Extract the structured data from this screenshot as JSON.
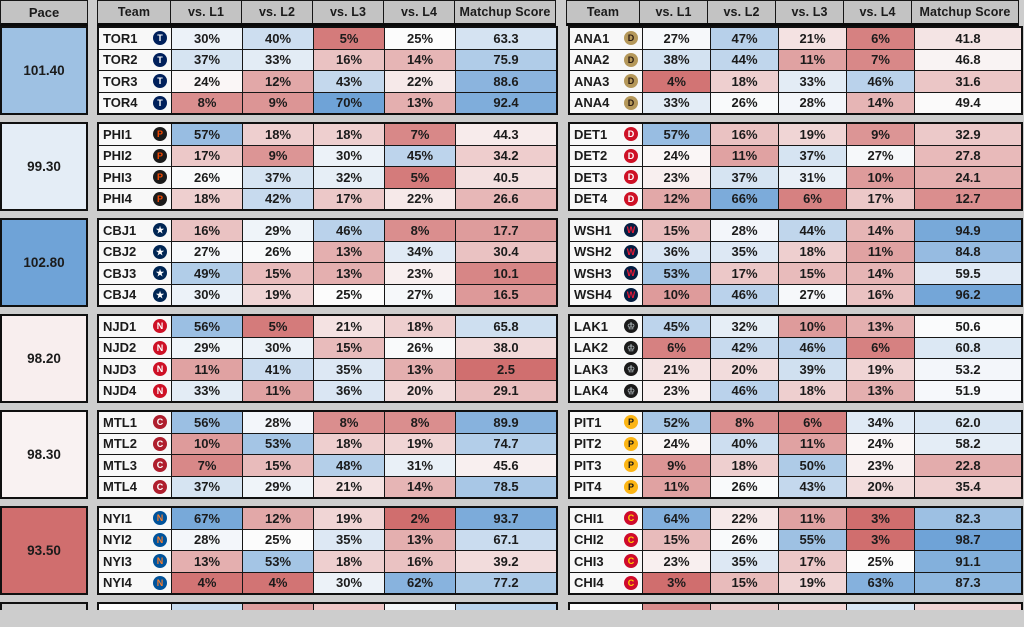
{
  "chart_data": {
    "type": "heatmap",
    "pace_label": "Pace",
    "columns": [
      "Team",
      "vs. L1",
      "vs. L2",
      "vs. L3",
      "vs. L4",
      "Matchup Score"
    ],
    "color_scale": {
      "white": "#fcfcfc",
      "blue": "#6fa3d7",
      "red": "#d06e6e",
      "pct_mid": 25,
      "pct_blue_span": 45,
      "pct_red_span": 22,
      "score_mid": 50,
      "score_span": 48,
      "pace_mid": 98.6,
      "pace_span": 4.2
    },
    "left_groups": [
      {
        "pace": 101.4,
        "teams": [
          {
            "team": "TOR1",
            "logo": "TOR",
            "vs": [
              30,
              40,
              5,
              25
            ],
            "score": 63.3
          },
          {
            "team": "TOR2",
            "logo": "TOR",
            "vs": [
              37,
              33,
              16,
              14
            ],
            "score": 75.9
          },
          {
            "team": "TOR3",
            "logo": "TOR",
            "vs": [
              24,
              12,
              43,
              22
            ],
            "score": 88.6
          },
          {
            "team": "TOR4",
            "logo": "TOR",
            "vs": [
              8,
              9,
              70,
              13
            ],
            "score": 92.4
          }
        ]
      },
      {
        "pace": 99.3,
        "teams": [
          {
            "team": "PHI1",
            "logo": "PHI",
            "vs": [
              57,
              18,
              18,
              7
            ],
            "score": 44.3
          },
          {
            "team": "PHI2",
            "logo": "PHI",
            "vs": [
              17,
              9,
              30,
              45
            ],
            "score": 34.2
          },
          {
            "team": "PHI3",
            "logo": "PHI",
            "vs": [
              26,
              37,
              32,
              5
            ],
            "score": 40.5
          },
          {
            "team": "PHI4",
            "logo": "PHI",
            "vs": [
              18,
              42,
              17,
              22
            ],
            "score": 26.6
          }
        ]
      },
      {
        "pace": 102.8,
        "teams": [
          {
            "team": "CBJ1",
            "logo": "CBJ",
            "vs": [
              16,
              29,
              46,
              8
            ],
            "score": 17.7
          },
          {
            "team": "CBJ2",
            "logo": "CBJ",
            "vs": [
              27,
              26,
              13,
              34
            ],
            "score": 30.4
          },
          {
            "team": "CBJ3",
            "logo": "CBJ",
            "vs": [
              49,
              15,
              13,
              23
            ],
            "score": 10.1
          },
          {
            "team": "CBJ4",
            "logo": "CBJ",
            "vs": [
              30,
              19,
              25,
              27
            ],
            "score": 16.5
          }
        ]
      },
      {
        "pace": 98.2,
        "teams": [
          {
            "team": "NJD1",
            "logo": "NJD",
            "vs": [
              56,
              5,
              21,
              18
            ],
            "score": 65.8
          },
          {
            "team": "NJD2",
            "logo": "NJD",
            "vs": [
              29,
              30,
              15,
              26
            ],
            "score": 38.0
          },
          {
            "team": "NJD3",
            "logo": "NJD",
            "vs": [
              11,
              41,
              35,
              13
            ],
            "score": 2.5
          },
          {
            "team": "NJD4",
            "logo": "NJD",
            "vs": [
              33,
              11,
              36,
              20
            ],
            "score": 29.1
          }
        ]
      },
      {
        "pace": 98.3,
        "teams": [
          {
            "team": "MTL1",
            "logo": "MTL",
            "vs": [
              56,
              28,
              8,
              8
            ],
            "score": 89.9
          },
          {
            "team": "MTL2",
            "logo": "MTL",
            "vs": [
              10,
              53,
              18,
              19
            ],
            "score": 74.7
          },
          {
            "team": "MTL3",
            "logo": "MTL",
            "vs": [
              7,
              15,
              48,
              31
            ],
            "score": 45.6
          },
          {
            "team": "MTL4",
            "logo": "MTL",
            "vs": [
              37,
              29,
              21,
              14
            ],
            "score": 78.5
          }
        ]
      },
      {
        "pace": 93.5,
        "teams": [
          {
            "team": "NYI1",
            "logo": "NYI",
            "vs": [
              67,
              12,
              19,
              2
            ],
            "score": 93.7
          },
          {
            "team": "NYI2",
            "logo": "NYI",
            "vs": [
              28,
              25,
              35,
              13
            ],
            "score": 67.1
          },
          {
            "team": "NYI3",
            "logo": "NYI",
            "vs": [
              13,
              53,
              18,
              16
            ],
            "score": 39.2
          },
          {
            "team": "NYI4",
            "logo": "NYI",
            "vs": [
              4,
              4,
              30,
              62
            ],
            "score": 77.2
          }
        ]
      }
    ],
    "right_groups": [
      {
        "teams": [
          {
            "team": "ANA1",
            "logo": "ANA",
            "vs": [
              27,
              47,
              21,
              6
            ],
            "score": 41.8
          },
          {
            "team": "ANA2",
            "logo": "ANA",
            "vs": [
              38,
              44,
              11,
              7
            ],
            "score": 46.8
          },
          {
            "team": "ANA3",
            "logo": "ANA",
            "vs": [
              4,
              18,
              33,
              46
            ],
            "score": 31.6
          },
          {
            "team": "ANA4",
            "logo": "ANA",
            "vs": [
              33,
              26,
              28,
              14
            ],
            "score": 49.4
          }
        ]
      },
      {
        "teams": [
          {
            "team": "DET1",
            "logo": "DET",
            "vs": [
              57,
              16,
              19,
              9
            ],
            "score": 32.9
          },
          {
            "team": "DET2",
            "logo": "DET",
            "vs": [
              24,
              11,
              37,
              27
            ],
            "score": 27.8
          },
          {
            "team": "DET3",
            "logo": "DET",
            "vs": [
              23,
              37,
              31,
              10
            ],
            "score": 24.1
          },
          {
            "team": "DET4",
            "logo": "DET",
            "vs": [
              12,
              66,
              6,
              17
            ],
            "score": 12.7
          }
        ]
      },
      {
        "teams": [
          {
            "team": "WSH1",
            "logo": "WSH",
            "vs": [
              15,
              28,
              44,
              14
            ],
            "score": 94.9
          },
          {
            "team": "WSH2",
            "logo": "WSH",
            "vs": [
              36,
              35,
              18,
              11
            ],
            "score": 84.8
          },
          {
            "team": "WSH3",
            "logo": "WSH",
            "vs": [
              53,
              17,
              15,
              14
            ],
            "score": 59.5
          },
          {
            "team": "WSH4",
            "logo": "WSH",
            "vs": [
              10,
              46,
              27,
              16
            ],
            "score": 96.2
          }
        ]
      },
      {
        "teams": [
          {
            "team": "LAK1",
            "logo": "LAK",
            "vs": [
              45,
              32,
              10,
              13
            ],
            "score": 50.6
          },
          {
            "team": "LAK2",
            "logo": "LAK",
            "vs": [
              6,
              42,
              46,
              6
            ],
            "score": 60.8
          },
          {
            "team": "LAK3",
            "logo": "LAK",
            "vs": [
              21,
              20,
              39,
              19
            ],
            "score": 53.2
          },
          {
            "team": "LAK4",
            "logo": "LAK",
            "vs": [
              23,
              46,
              18,
              13
            ],
            "score": 51.9
          }
        ]
      },
      {
        "teams": [
          {
            "team": "PIT1",
            "logo": "PIT",
            "vs": [
              52,
              8,
              6,
              34
            ],
            "score": 62.0
          },
          {
            "team": "PIT2",
            "logo": "PIT",
            "vs": [
              24,
              40,
              11,
              24
            ],
            "score": 58.2
          },
          {
            "team": "PIT3",
            "logo": "PIT",
            "vs": [
              9,
              18,
              50,
              23
            ],
            "score": 22.8
          },
          {
            "team": "PIT4",
            "logo": "PIT",
            "vs": [
              11,
              26,
              43,
              20
            ],
            "score": 35.4
          }
        ]
      },
      {
        "teams": [
          {
            "team": "CHI1",
            "logo": "CHI",
            "vs": [
              64,
              22,
              11,
              3
            ],
            "score": 82.3
          },
          {
            "team": "CHI2",
            "logo": "CHI",
            "vs": [
              15,
              26,
              55,
              3
            ],
            "score": 98.7
          },
          {
            "team": "CHI3",
            "logo": "CHI",
            "vs": [
              23,
              35,
              17,
              25
            ],
            "score": 91.1
          },
          {
            "team": "CHI4",
            "logo": "CHI",
            "vs": [
              3,
              15,
              19,
              63
            ],
            "score": 87.3
          }
        ]
      }
    ],
    "partial_bottom_row": {
      "left": [
        "#ffffff",
        "#c7dbee",
        "#de9d9d",
        "#efc6c6",
        "#f4f7fa",
        "#b9d3ec"
      ],
      "right": [
        "#ffffff",
        "#d98c8c",
        "#eccaca",
        "#f3d8d8",
        "#d8e6f4",
        "#efd3d3"
      ]
    }
  },
  "logos": {
    "TOR": {
      "bg": "#00205b",
      "fg": "#ffffff",
      "glyph": "T"
    },
    "PHI": {
      "bg": "#1b1b1b",
      "fg": "#f74902",
      "glyph": "P"
    },
    "CBJ": {
      "bg": "#002654",
      "fg": "#ffffff",
      "glyph": "★"
    },
    "NJD": {
      "bg": "#ce1126",
      "fg": "#ffffff",
      "glyph": "N"
    },
    "MTL": {
      "bg": "#af1e2d",
      "fg": "#ffffff",
      "glyph": "C"
    },
    "NYI": {
      "bg": "#00539b",
      "fg": "#f47d30",
      "glyph": "N"
    },
    "ANA": {
      "bg": "#b5985a",
      "fg": "#2a1a10",
      "glyph": "D"
    },
    "DET": {
      "bg": "#ce1126",
      "fg": "#ffffff",
      "glyph": "D"
    },
    "WSH": {
      "bg": "#041e42",
      "fg": "#e51937",
      "glyph": "W"
    },
    "LAK": {
      "bg": "#1b1b1b",
      "fg": "#a2aaad",
      "glyph": "♔"
    },
    "PIT": {
      "bg": "#fcb514",
      "fg": "#141414",
      "glyph": "P"
    },
    "CHI": {
      "bg": "#cf0a2c",
      "fg": "#ffd100",
      "glyph": "C"
    }
  }
}
